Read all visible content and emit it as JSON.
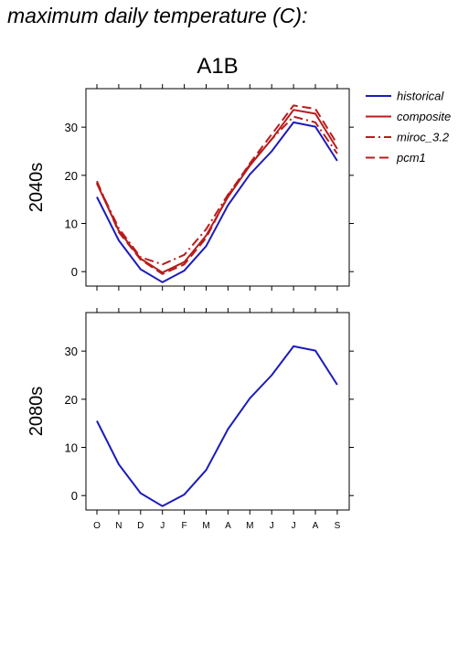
{
  "page": {
    "title": "maximum daily temperature (C):"
  },
  "colors": {
    "historical": "#1c1cb8",
    "projection": "#b81c1c"
  },
  "chart_data": {
    "type": "line",
    "panel_title": "A1B",
    "xlabel": "",
    "ylabel": "",
    "ylim": [
      -3,
      38
    ],
    "yticks": [
      0,
      10,
      20,
      30
    ],
    "categories": [
      "O",
      "N",
      "D",
      "J",
      "F",
      "M",
      "A",
      "M",
      "J",
      "J",
      "A",
      "S"
    ],
    "legend": {
      "position": "right",
      "entries": [
        {
          "name": "historical",
          "style": "solid"
        },
        {
          "name": "composite",
          "style": "solid"
        },
        {
          "name": "miroc_3.2",
          "style": "dashdot"
        },
        {
          "name": "pcm1",
          "style": "dashed"
        }
      ]
    },
    "rows": [
      {
        "label": "2040s",
        "series": [
          {
            "name": "historical",
            "style": "solid",
            "values": [
              15.5,
              6.5,
              0.5,
              -2.2,
              0.2,
              5.3,
              13.8,
              20.2,
              25.0,
              31.0,
              30.1,
              23.0
            ]
          },
          {
            "name": "composite",
            "style": "solid",
            "values": [
              18.3,
              8.5,
              2.7,
              -0.2,
              2.0,
              7.5,
              15.5,
              22.0,
              27.5,
              33.6,
              32.8,
              25.5
            ]
          },
          {
            "name": "miroc_3.2",
            "style": "dashdot",
            "values": [
              18.5,
              9.0,
              3.0,
              1.5,
              3.5,
              8.8,
              16.0,
              22.2,
              27.5,
              32.2,
              31.0,
              24.5
            ]
          },
          {
            "name": "pcm1",
            "style": "dashed",
            "values": [
              18.8,
              8.2,
              2.5,
              -0.5,
              1.5,
              7.0,
              15.8,
              22.5,
              28.5,
              34.5,
              33.8,
              26.5
            ]
          }
        ]
      },
      {
        "label": "2080s",
        "series": [
          {
            "name": "historical",
            "style": "solid",
            "values": [
              15.5,
              6.5,
              0.5,
              -2.2,
              0.2,
              5.3,
              13.8,
              20.2,
              25.0,
              31.0,
              30.1,
              23.0
            ]
          }
        ]
      }
    ]
  }
}
